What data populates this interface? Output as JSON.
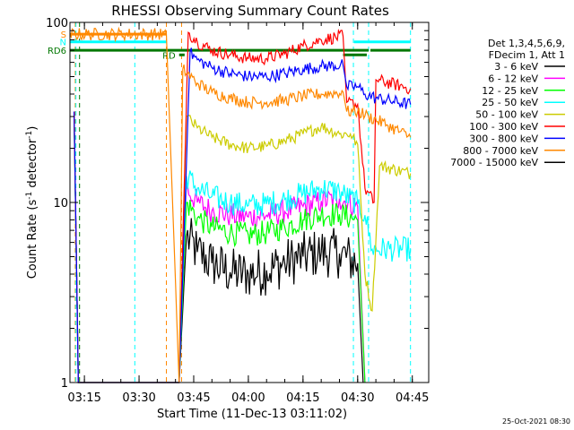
{
  "chart_data": {
    "type": "line",
    "title": "RHESSI Observing Summary Count Rates",
    "xlabel": "Start Time (11-Dec-13 03:11:02)",
    "ylabel_main": "Count Rate (s",
    "ylabel_sup1": "-1",
    "ylabel_mid": " detector",
    "ylabel_sup2": "-1",
    "ylabel_end": ")",
    "x_scale": "time",
    "x_range": [
      "03:11:02",
      "04:49:30"
    ],
    "x_ticks": [
      "03:15",
      "03:30",
      "03:45",
      "04:00",
      "04:15",
      "04:30",
      "04:45"
    ],
    "y_scale": "log",
    "y_range": [
      1,
      100
    ],
    "y_tick_labels": [
      "1",
      "10",
      "100"
    ],
    "grid": false,
    "legend_position": "right",
    "legend_header": [
      "Det 1,3,4,5,6,9,",
      "FDecim 1, Att 1"
    ],
    "series": [
      {
        "name": "3 - 6 keV",
        "color": "#000000",
        "points": [
          [
            "03:12:10",
            30
          ],
          [
            "03:13:20",
            1
          ],
          [
            "03:41:00",
            1
          ],
          [
            "03:43:00",
            6.5
          ],
          [
            "03:46:00",
            5.3
          ],
          [
            "03:50:00",
            4.6
          ],
          [
            "03:55:00",
            4.1
          ],
          [
            "04:00:00",
            4.0
          ],
          [
            "04:05:00",
            4.2
          ],
          [
            "04:10:00",
            4.6
          ],
          [
            "04:15:00",
            5.0
          ],
          [
            "04:20:00",
            5.3
          ],
          [
            "04:25:00",
            5.2
          ],
          [
            "04:30:00",
            4.6
          ],
          [
            "04:31:30",
            1
          ]
        ]
      },
      {
        "name": "6 - 12 keV",
        "color": "#ff00ff",
        "points": [
          [
            "03:12:10",
            32
          ],
          [
            "03:13:20",
            1
          ],
          [
            "03:41:00",
            1
          ],
          [
            "03:43:00",
            12
          ],
          [
            "03:46:00",
            10
          ],
          [
            "03:50:00",
            9.0
          ],
          [
            "03:55:00",
            8.5
          ],
          [
            "04:00:00",
            8.3
          ],
          [
            "04:05:00",
            8.5
          ],
          [
            "04:10:00",
            8.9
          ],
          [
            "04:15:00",
            9.5
          ],
          [
            "04:20:00",
            10.2
          ],
          [
            "04:25:00",
            10.5
          ],
          [
            "04:30:00",
            9.5
          ],
          [
            "04:32:00",
            1
          ]
        ]
      },
      {
        "name": "12 - 25 keV",
        "color": "#00ff00",
        "points": [
          [
            "03:12:10",
            30
          ],
          [
            "03:13:20",
            1
          ],
          [
            "03:41:00",
            1
          ],
          [
            "03:43:00",
            10
          ],
          [
            "03:46:00",
            8.2
          ],
          [
            "03:50:00",
            7.3
          ],
          [
            "03:55:00",
            6.8
          ],
          [
            "04:00:00",
            6.6
          ],
          [
            "04:05:00",
            6.8
          ],
          [
            "04:10:00",
            7.3
          ],
          [
            "04:15:00",
            8.0
          ],
          [
            "04:20:00",
            8.6
          ],
          [
            "04:25:00",
            8.6
          ],
          [
            "04:30:00",
            8.0
          ],
          [
            "04:32:00",
            1
          ]
        ]
      },
      {
        "name": "25 - 50 keV",
        "color": "#00ffff",
        "points": [
          [
            "03:12:10",
            30
          ],
          [
            "03:13:20",
            1
          ],
          [
            "03:41:00",
            1
          ],
          [
            "03:43:00",
            14
          ],
          [
            "03:46:00",
            12
          ],
          [
            "03:50:00",
            10.8
          ],
          [
            "03:55:00",
            10.0
          ],
          [
            "04:00:00",
            9.6
          ],
          [
            "04:05:00",
            9.8
          ],
          [
            "04:10:00",
            10.4
          ],
          [
            "04:15:00",
            11.2
          ],
          [
            "04:20:00",
            12.0
          ],
          [
            "04:25:00",
            11.5
          ],
          [
            "04:30:00",
            9.8
          ],
          [
            "04:32:00",
            8.5
          ],
          [
            "04:34:00",
            5.5
          ],
          [
            "04:44:30",
            5.5
          ]
        ]
      },
      {
        "name": "50 - 100 keV",
        "color": "#cccc00",
        "points": [
          [
            "03:12:10",
            30
          ],
          [
            "03:13:20",
            1
          ],
          [
            "03:41:00",
            1
          ],
          [
            "03:43:00",
            30
          ],
          [
            "03:46:00",
            26
          ],
          [
            "03:50:00",
            23
          ],
          [
            "03:55:00",
            21
          ],
          [
            "04:00:00",
            20
          ],
          [
            "04:05:00",
            20.5
          ],
          [
            "04:10:00",
            22
          ],
          [
            "04:15:00",
            24
          ],
          [
            "04:20:00",
            26.5
          ],
          [
            "04:25:00",
            24
          ],
          [
            "04:28:00",
            24
          ],
          [
            "04:30:00",
            21
          ],
          [
            "04:32:00",
            4
          ],
          [
            "04:34:00",
            2.5
          ],
          [
            "04:36:00",
            16
          ],
          [
            "04:44:30",
            14.5
          ]
        ]
      },
      {
        "name": "100 - 300 keV",
        "color": "#ff0000",
        "points": [
          [
            "03:12:10",
            32
          ],
          [
            "03:13:20",
            1
          ],
          [
            "03:41:00",
            1
          ],
          [
            "03:43:30",
            88
          ],
          [
            "03:46:00",
            78
          ],
          [
            "03:50:00",
            70
          ],
          [
            "03:55:00",
            66
          ],
          [
            "04:00:00",
            63
          ],
          [
            "04:05:00",
            63
          ],
          [
            "04:10:00",
            67
          ],
          [
            "04:15:00",
            74
          ],
          [
            "04:20:00",
            80
          ],
          [
            "04:26:00",
            84
          ],
          [
            "04:27:00",
            36
          ],
          [
            "04:30:00",
            35
          ],
          [
            "04:32:00",
            12
          ],
          [
            "04:34:30",
            10
          ],
          [
            "04:35:00",
            48
          ],
          [
            "04:44:30",
            43
          ]
        ]
      },
      {
        "name": "300 - 800 keV",
        "color": "#0000ff",
        "points": [
          [
            "03:12:10",
            32
          ],
          [
            "03:13:20",
            1
          ],
          [
            "03:41:00",
            1
          ],
          [
            "03:44:00",
            68
          ],
          [
            "03:46:00",
            62
          ],
          [
            "03:50:00",
            56
          ],
          [
            "03:55:00",
            52
          ],
          [
            "04:00:00",
            50
          ],
          [
            "04:05:00",
            50
          ],
          [
            "04:10:00",
            52
          ],
          [
            "04:15:00",
            55
          ],
          [
            "04:20:00",
            57
          ],
          [
            "04:26:00",
            58
          ],
          [
            "04:27:00",
            44
          ],
          [
            "04:30:00",
            44
          ],
          [
            "04:32:00",
            40
          ],
          [
            "04:35:00",
            38
          ],
          [
            "04:44:30",
            35
          ]
        ]
      },
      {
        "name": "800 - 7000 keV",
        "color": "#ff8800",
        "points": [
          [
            "03:11:02",
            86
          ],
          [
            "03:37:30",
            86
          ],
          [
            "03:41:00",
            1
          ],
          [
            "03:42:00",
            55
          ],
          [
            "03:46:00",
            46
          ],
          [
            "03:50:00",
            41
          ],
          [
            "03:55:00",
            38
          ],
          [
            "04:00:00",
            36
          ],
          [
            "04:05:00",
            36
          ],
          [
            "04:10:00",
            37
          ],
          [
            "04:15:00",
            39
          ],
          [
            "04:20:00",
            40
          ],
          [
            "04:26:00",
            41
          ],
          [
            "04:27:00",
            32
          ],
          [
            "04:30:00",
            32
          ],
          [
            "04:33:00",
            30
          ],
          [
            "04:38:00",
            27
          ],
          [
            "04:44:30",
            23
          ]
        ]
      },
      {
        "name": "7000 - 15000 keV",
        "color": "#000000",
        "points": []
      }
    ],
    "mode_bars": [
      {
        "label": "S",
        "color": "#ff8800",
        "start": "03:11:02",
        "end": "03:37:30",
        "level": 86
      },
      {
        "label": "N",
        "color": "#00ffff",
        "start": "03:11:02",
        "end": "03:37:30",
        "level": 78
      },
      {
        "label": "",
        "color": "#00ffff",
        "start": "04:29:00",
        "end": "04:44:30",
        "level": 78
      },
      {
        "label": "RD6",
        "color": "#007700",
        "start": "03:11:02",
        "end": "04:33:00",
        "level": 70
      },
      {
        "label": "",
        "color": "#007700",
        "start": "04:33:30",
        "end": "04:44:30",
        "level": 70
      },
      {
        "label": "RD",
        "color": "#007700",
        "start": "03:41:00",
        "end": "03:42:30",
        "level": 66
      },
      {
        "label": "",
        "color": "#007700",
        "start": "04:26:00",
        "end": "04:32:30",
        "level": 66
      }
    ],
    "vertical_markers": [
      {
        "time": "03:12:30",
        "color": "#ff8800"
      },
      {
        "time": "03:12:40",
        "color": "#00ffff"
      },
      {
        "time": "03:13:40",
        "color": "#007700"
      },
      {
        "time": "03:28:50",
        "color": "#00ffff"
      },
      {
        "time": "03:37:30",
        "color": "#ff8800"
      },
      {
        "time": "03:41:40",
        "color": "#ff8800"
      },
      {
        "time": "04:28:50",
        "color": "#00ffff"
      },
      {
        "time": "04:33:00",
        "color": "#00ffff"
      },
      {
        "time": "04:44:30",
        "color": "#00ffff"
      }
    ]
  },
  "footer_timestamp": "25-Oct-2021 08:30"
}
